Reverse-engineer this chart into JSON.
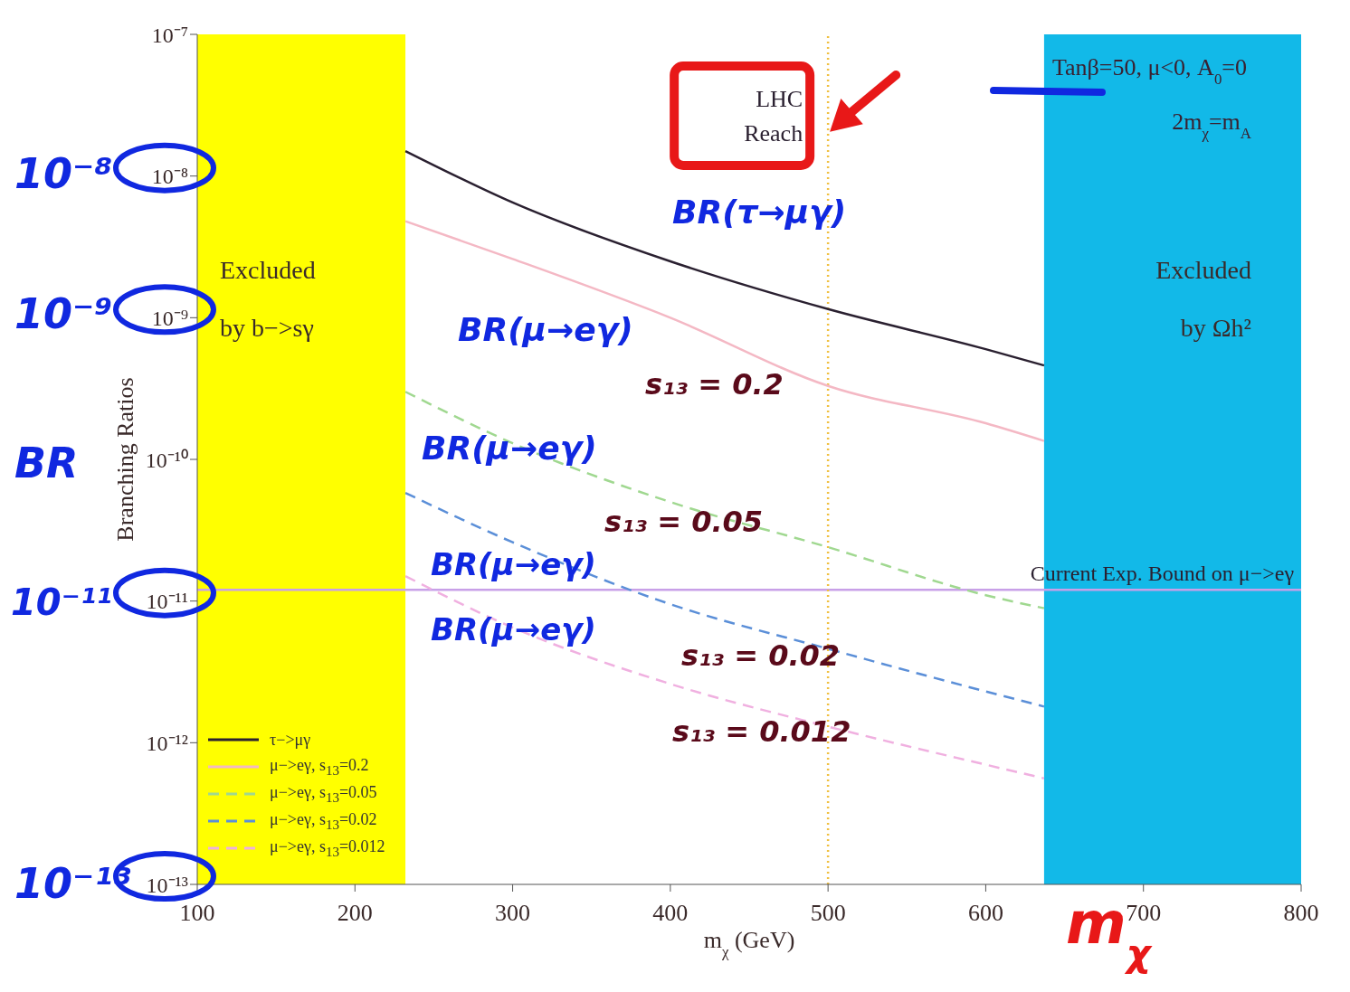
{
  "chart_data": {
    "type": "line",
    "xlabel": "m$_{χ}$ (GeV)",
    "ylabel": "Branching Ratios",
    "xlim": [
      100,
      800
    ],
    "xticks": [
      100,
      200,
      300,
      400,
      500,
      600,
      700,
      800
    ],
    "ylim": [
      1e-13,
      1e-07
    ],
    "log": "y",
    "yticks": [
      {
        "value": 1e-13,
        "label": "10⁻¹³"
      },
      {
        "value": 1e-12,
        "label": "10⁻¹²"
      },
      {
        "value": 1e-11,
        "label": "10⁻¹¹"
      },
      {
        "value": 1e-10,
        "label": "10⁻¹⁰"
      },
      {
        "value": 1e-09,
        "label": "10⁻⁹"
      },
      {
        "value": 1e-08,
        "label": "10⁻⁸"
      },
      {
        "value": 1e-07,
        "label": "10⁻⁷"
      }
    ],
    "grid": false,
    "legend": "bottom left",
    "marker": "none",
    "series": [
      {
        "name": "τ−>μγ",
        "color": "#2a2030",
        "line_style": "solid",
        "x": [
          232,
          300,
          400,
          500,
          600,
          637
        ],
        "values": [
          1.5e-08,
          6.5e-09,
          2.5e-09,
          1.15e-09,
          6e-10,
          4.6e-10
        ]
      },
      {
        "name": "μ−>eγ, s$_{13}$=0.2",
        "color": "#f4b8c4",
        "line_style": "solid",
        "x": [
          232,
          300,
          400,
          500,
          600,
          637
        ],
        "values": [
          4.8e-09,
          2.6e-09,
          1e-09,
          3.3e-10,
          1.8e-10,
          1.35e-10
        ]
      },
      {
        "name": "μ−>eγ, s$_{13}$=0.05",
        "color": "#a0d890",
        "line_style": "dashed",
        "x": [
          232,
          300,
          400,
          500,
          600,
          637
        ],
        "values": [
          3e-10,
          1.3e-10,
          5e-11,
          2.4e-11,
          1.1e-11,
          8.9e-12
        ]
      },
      {
        "name": "μ−>eγ, s$_{13}$=0.02",
        "color": "#5b8fd8",
        "line_style": "dashed",
        "x": [
          232,
          300,
          400,
          500,
          600,
          637
        ],
        "values": [
          5.8e-11,
          2.6e-11,
          9.5e-12,
          4.6e-12,
          2.3e-12,
          1.8e-12
        ]
      },
      {
        "name": "μ−>eγ, s$_{13}$=0.012",
        "color": "#f0b0e0",
        "line_style": "dashed",
        "x": [
          232,
          300,
          400,
          500,
          600,
          637
        ],
        "values": [
          1.5e-11,
          6.5e-12,
          2.6e-12,
          1.3e-12,
          7e-13,
          5.6e-13
        ]
      }
    ],
    "bands": [
      {
        "axis": "x",
        "from": 100,
        "to": 232,
        "label": "Excluded by b−>sγ",
        "color": "#ffff00"
      },
      {
        "axis": "x",
        "from": 637,
        "to": 800,
        "label": "Excluded by Ωh²",
        "color": "#12b9e8"
      }
    ],
    "ref_lines": [
      {
        "axis": "y",
        "value": 1.2e-11,
        "label": "Current Exp. Bound on μ−>eγ",
        "color": "#c8a0e8",
        "line_style": "solid"
      },
      {
        "axis": "x",
        "value": 500,
        "label": "LHC Reach",
        "color": "#f0c040",
        "line_style": "dotted"
      }
    ],
    "annotations": [
      "Tanβ=50, μ<0, A$_{0}$=0",
      "2m$_{χ}$=m$_{A}$",
      "10⁻⁸",
      "10⁻⁹",
      "BR",
      "10⁻¹¹",
      "10⁻¹³",
      "m$_{χ}$",
      "BR(τ→μγ)",
      "BR(μ→eγ)",
      "s₁₃ = 0.2",
      "BR(μ→eγ)",
      "s₁₃ = 0.05",
      "BR(μ→eγ)",
      "s₁₃ = 0.02",
      "BR(μ→eγ)",
      "s₁₃ = 0.012"
    ]
  }
}
